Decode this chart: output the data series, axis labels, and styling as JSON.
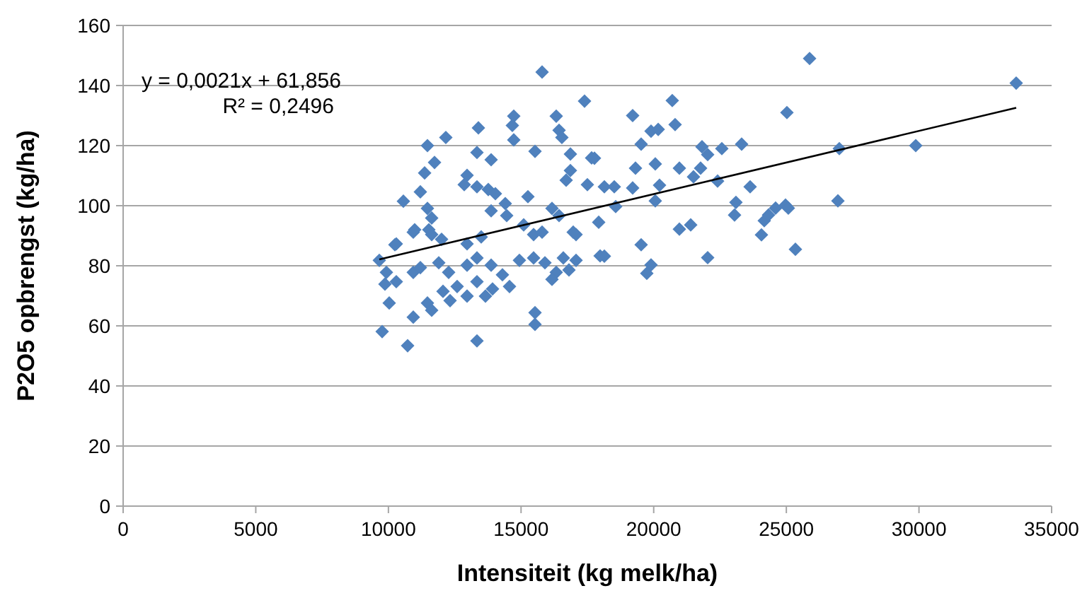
{
  "chart_data": {
    "type": "scatter",
    "xlabel": "Intensiteit (kg melk/ha)",
    "ylabel": "P2O5 opbrengst (kg/ha)",
    "xlim": [
      0,
      35000
    ],
    "xticks": [
      0,
      5000,
      10000,
      15000,
      20000,
      25000,
      30000,
      35000
    ],
    "ylim": [
      0,
      160
    ],
    "yticks": [
      0,
      20,
      40,
      60,
      80,
      100,
      120,
      140,
      160
    ],
    "grid": "y",
    "annotations": [
      "y = 0,0021x + 61,856",
      "R² = 0,2496"
    ],
    "series": [
      {
        "color": "#4f81bd",
        "marker": "diamond",
        "x": [
          33665,
          29878,
          26997,
          26944,
          25877,
          25022,
          20700,
          19207,
          20807,
          19900,
          20170,
          19527,
          21821,
          22568,
          23315,
          22035,
          19314,
          20060,
          20968,
          21768,
          21500,
          22408,
          23635,
          20220,
          19207,
          18140,
          18514,
          17767,
          20060,
          18567,
          23100,
          23048,
          24168,
          24328,
          24595,
          24969,
          25075,
          17927,
          20968,
          21395,
          24062,
          19527,
          18140,
          22035,
          25342,
          19900,
          19740,
          15793,
          17393,
          14725,
          14672,
          16326,
          16433,
          16539,
          13392,
          12164,
          11471,
          14725,
          15526,
          16860,
          17660,
          13338,
          13872,
          11738,
          11365,
          12965,
          12858,
          16860,
          16700,
          17500,
          11204,
          13338,
          13765,
          14032,
          10564,
          15259,
          14405,
          13872,
          14459,
          11471,
          11631,
          16166,
          16433,
          10937,
          11631,
          12004,
          15099,
          15473,
          15793,
          17073,
          10297,
          12965,
          13498,
          9657,
          10244,
          9924,
          10297,
          9870,
          10937,
          11204,
          10030,
          10937,
          9764,
          10724,
          13338,
          11471,
          11631,
          12058,
          12324,
          12591,
          12965,
          13338,
          11898,
          12271,
          12965,
          13338,
          13658,
          13925,
          13872,
          14298,
          14565,
          14938,
          15473,
          15900,
          16326,
          16806,
          16593,
          17073,
          15526,
          15526,
          16166,
          17980,
          16966,
          10990,
          11524
        ],
        "values": [
          140.8,
          120,
          119,
          101.6,
          149,
          131,
          135,
          130,
          127,
          124.8,
          125.4,
          120.5,
          119.6,
          119,
          120.5,
          117,
          112.5,
          113.9,
          112.5,
          112.5,
          109.6,
          108.2,
          106.3,
          106.8,
          105.9,
          106.3,
          106.3,
          115.8,
          101.6,
          99.7,
          101.1,
          96.9,
          95,
          96.9,
          99.2,
          100.2,
          99.2,
          94.5,
          92.2,
          93.6,
          90.3,
          87,
          83.2,
          82.7,
          85.5,
          80.3,
          77.5,
          144.5,
          134.8,
          129.8,
          126.7,
          129.8,
          125.1,
          122.7,
          125.9,
          122.7,
          120,
          121.9,
          118.1,
          117.2,
          115.9,
          117.7,
          115.3,
          114.4,
          110.9,
          110.1,
          107,
          111.7,
          108.5,
          107,
          104.6,
          106.3,
          105.4,
          104,
          101.5,
          103,
          100.7,
          98.3,
          96.7,
          99.1,
          95.9,
          99.1,
          96.7,
          91.2,
          90.4,
          88.8,
          93.6,
          90.4,
          91.2,
          90.4,
          87.3,
          87.3,
          89.6,
          81.8,
          87,
          77.8,
          74.7,
          73.9,
          77.8,
          79.4,
          67.6,
          62.9,
          58.1,
          53.4,
          55,
          67.6,
          65.2,
          71.5,
          68.4,
          73.1,
          69.9,
          74.7,
          81,
          77.8,
          80.2,
          82.6,
          69.9,
          72.3,
          80.2,
          77,
          73.1,
          81.8,
          82.6,
          81,
          77.8,
          78.6,
          82.6,
          81.8,
          64.4,
          60.5,
          75.5,
          83.3,
          91.2,
          92,
          92
        ]
      },
      {
        "type": "line",
        "color": "#000000",
        "marker": "none",
        "x": [
          9657,
          33665
        ],
        "values": [
          82.1,
          132.6
        ]
      }
    ]
  }
}
